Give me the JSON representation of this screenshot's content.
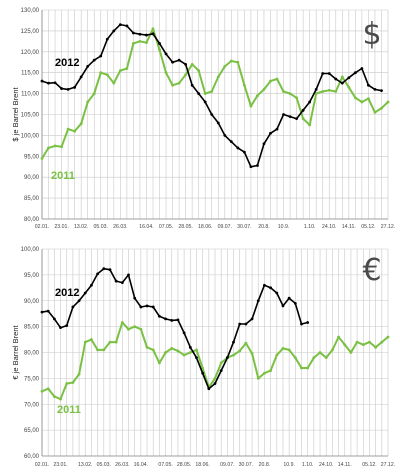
{
  "chart_data": [
    {
      "type": "line",
      "currency_symbol": "$",
      "ylabel": "$ je Barrel Brent",
      "ylim": [
        80,
        130
      ],
      "y_ticks": [
        "80,00",
        "85,00",
        "90,00",
        "95,00",
        "100,00",
        "105,00",
        "110,00",
        "115,00",
        "120,00",
        "125,00",
        "130,00"
      ],
      "x_tick_labels": [
        "02.01.",
        "23.01.",
        "13.02.",
        "05.03.",
        "26.03.",
        "16.04.",
        "07.05.",
        "28.05.",
        "18.06.",
        "09.07.",
        "30.07.",
        "20.8.",
        "10.9.",
        "1.10.",
        "24.10.",
        "14.11.",
        "05.12.",
        "27.12."
      ],
      "grid": true,
      "series": [
        {
          "name": "2012",
          "color": "#000000",
          "values": [
            113,
            112.5,
            112.6,
            111.2,
            111,
            111.5,
            114,
            116.5,
            118,
            119,
            123,
            125,
            126.5,
            126.2,
            124.5,
            124.2,
            124,
            124.3,
            122,
            119.5,
            117.5,
            118,
            117,
            112,
            110,
            108,
            105,
            103,
            100,
            98.5,
            97,
            96,
            92.5,
            92.8,
            98,
            100.5,
            101.5,
            105,
            104.5,
            104,
            106,
            108,
            111,
            114.8,
            114.8,
            113.5,
            112.5,
            113.8,
            115,
            116,
            112,
            111,
            110.7
          ]
        },
        {
          "name": "2011",
          "color": "#7ac143",
          "values": [
            94.5,
            97,
            97.5,
            97.3,
            101.5,
            101,
            102.8,
            108,
            110,
            115,
            114.5,
            112.5,
            115.5,
            116,
            122,
            122.5,
            122.2,
            125.5,
            120.5,
            115,
            112,
            112.5,
            114.5,
            117,
            115.5,
            110,
            110.5,
            114,
            116.5,
            117.8,
            117.5,
            112,
            107,
            109.5,
            111,
            113,
            113.5,
            110.5,
            110,
            109,
            104,
            102.5,
            110,
            110.5,
            110.8,
            110.5,
            114,
            111.5,
            109,
            108,
            108.8,
            105.5,
            106.5,
            108
          ]
        }
      ]
    },
    {
      "type": "line",
      "currency_symbol": "€",
      "ylabel": "€ je Barrel Brent",
      "ylim": [
        60,
        100
      ],
      "y_ticks": [
        "60,00",
        "65,00",
        "70,00",
        "75,00",
        "80,00",
        "85,00",
        "90,00",
        "95,00",
        "100,00"
      ],
      "x_tick_labels": [
        "02.01.",
        "23.01.",
        "13.02.",
        "05.03.",
        "26.03.",
        "16.04.",
        "07.05.",
        "28.05.",
        "18.06.",
        "09.07.",
        "30.07.",
        "20.8.",
        "10.9.",
        "1.10.",
        "24.10.",
        "14.11.",
        "05.12.",
        "27.12."
      ],
      "grid": true,
      "series": [
        {
          "name": "2012",
          "color": "#000000",
          "values": [
            87.8,
            88,
            86.5,
            84.8,
            85.2,
            88.8,
            90,
            91.5,
            93,
            95.2,
            96.2,
            96,
            93.8,
            93.5,
            95,
            90.5,
            88.8,
            89,
            88.8,
            87,
            86.5,
            86.2,
            86.3,
            83.8,
            81,
            79,
            76,
            73,
            74,
            76.5,
            79,
            82,
            85.5,
            85.5,
            86.5,
            90,
            93,
            92.5,
            91.5,
            89,
            90.5,
            89.5,
            85.5,
            85.8
          ]
        },
        {
          "name": "2011",
          "color": "#7ac143",
          "values": [
            72.5,
            73,
            71.5,
            71,
            74,
            74.2,
            75.8,
            82,
            82.5,
            80.5,
            80.5,
            82,
            82,
            85.8,
            84.5,
            85,
            84.5,
            81,
            80.5,
            78,
            80,
            80.8,
            80.3,
            79.5,
            80,
            80.5,
            77,
            73.3,
            75,
            78,
            79,
            79.5,
            80.3,
            81.8,
            79.8,
            75,
            76,
            76.5,
            79.5,
            80.8,
            80.5,
            79,
            77,
            77,
            79,
            80,
            79,
            80.5,
            83,
            81.5,
            80,
            82,
            81.5,
            82,
            81,
            82,
            83
          ]
        }
      ]
    }
  ]
}
